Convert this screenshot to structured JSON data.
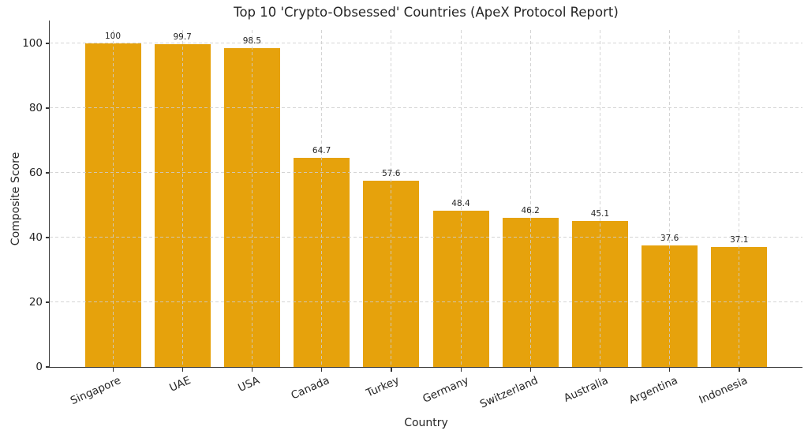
{
  "chart_data": {
    "type": "bar",
    "title": "Top 10 'Crypto-Obsessed' Countries (ApeX Protocol Report)",
    "xlabel": "Country",
    "ylabel": "Composite Score",
    "categories": [
      "Singapore",
      "UAE",
      "USA",
      "Canada",
      "Turkey",
      "Germany",
      "Switzerland",
      "Australia",
      "Argentina",
      "Indonesia"
    ],
    "values": [
      100,
      99.7,
      98.5,
      64.7,
      57.6,
      48.4,
      46.2,
      45.1,
      37.6,
      37.1
    ],
    "value_labels": [
      "100",
      "99.7",
      "98.5",
      "64.7",
      "57.6",
      "48.4",
      "46.2",
      "45.1",
      "37.6",
      "37.1"
    ],
    "yticks": [
      0,
      20,
      40,
      60,
      80,
      100
    ],
    "ylim": [
      0,
      104.1
    ],
    "bar_color": "#E6A20C",
    "grid_color": "#cccccc",
    "grid_style": "dashed",
    "grid_axes": "both",
    "text_color": "#262626",
    "legend": "none",
    "x_tick_rotation_deg": -24
  }
}
